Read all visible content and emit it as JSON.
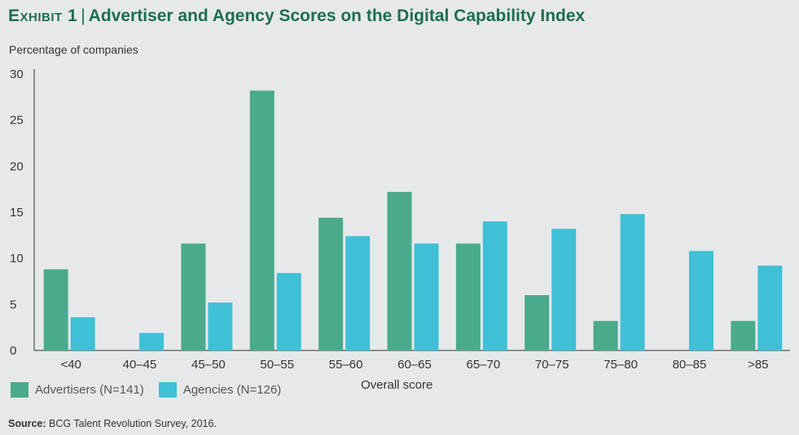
{
  "header": {
    "exhibit": "Exhibit 1",
    "separator": "|",
    "title": "Advertiser and Agency Scores on the Digital Capability Index"
  },
  "source": {
    "label": "Source:",
    "text": "BCG Talent Revolution Survey, 2016."
  },
  "chart_data": {
    "type": "bar",
    "title": "Advertiser and Agency Scores on the Digital Capability Index",
    "xlabel": "Overall score",
    "ylabel": "Percentage of companies",
    "ylim": [
      0,
      30
    ],
    "yticks": [
      0,
      5,
      10,
      15,
      20,
      25,
      30
    ],
    "categories": [
      "<40",
      "40–45",
      "45–50",
      "50–55",
      "55–60",
      "60–65",
      "65–70",
      "70–75",
      "75–80",
      "80–85",
      ">85"
    ],
    "series": [
      {
        "name": "Advertisers (N=141)",
        "color": "#4aaa8e",
        "values": [
          8.8,
          0,
          11.6,
          28.2,
          14.4,
          17.2,
          11.6,
          6.0,
          3.2,
          0,
          3.2
        ]
      },
      {
        "name": "Agencies (N=126)",
        "color": "#40c0d6",
        "values": [
          3.6,
          1.9,
          5.2,
          8.4,
          12.4,
          11.6,
          14.0,
          13.2,
          14.8,
          10.8,
          9.2
        ]
      }
    ],
    "legend_position": "bottom-left"
  }
}
